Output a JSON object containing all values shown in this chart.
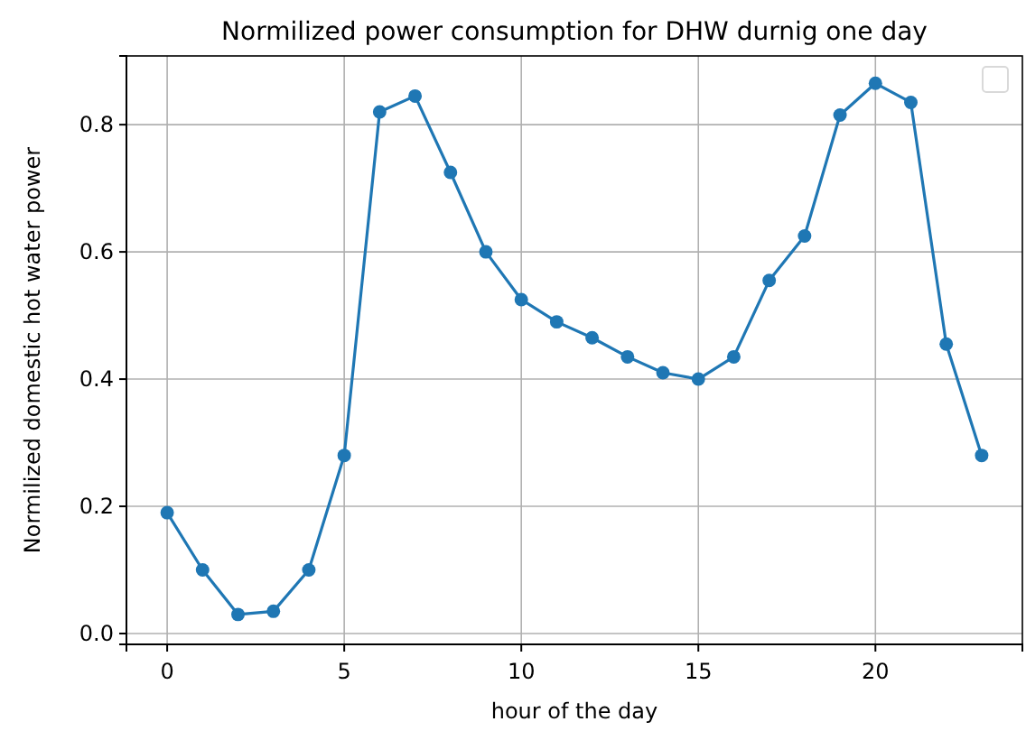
{
  "chart_data": {
    "type": "line",
    "title": "Normilized power consumption for DHW durnig one day",
    "xlabel": "hour of the day",
    "ylabel": "Normilized domestic hot water power",
    "x": [
      0,
      1,
      2,
      3,
      4,
      5,
      6,
      7,
      8,
      9,
      10,
      11,
      12,
      13,
      14,
      15,
      16,
      17,
      18,
      19,
      20,
      21,
      22,
      23
    ],
    "series": [
      {
        "color": "#1f77b4",
        "values": [
          0.19,
          0.1,
          0.03,
          0.035,
          0.1,
          0.28,
          0.82,
          0.845,
          0.725,
          0.6,
          0.525,
          0.49,
          0.465,
          0.435,
          0.41,
          0.4,
          0.435,
          0.555,
          0.625,
          0.815,
          0.865,
          0.835,
          0.455,
          0.28
        ]
      }
    ],
    "xlim": [
      -1.15,
      24.15
    ],
    "xticks": [
      0,
      5,
      10,
      15,
      20
    ],
    "ylim": [
      -0.017,
      0.908
    ],
    "yticks": [
      {
        "value": 0,
        "label": "0.0"
      },
      0.2,
      0.4,
      0.6,
      0.8
    ],
    "grid": true,
    "marker": "circle",
    "line_style": "solid"
  }
}
